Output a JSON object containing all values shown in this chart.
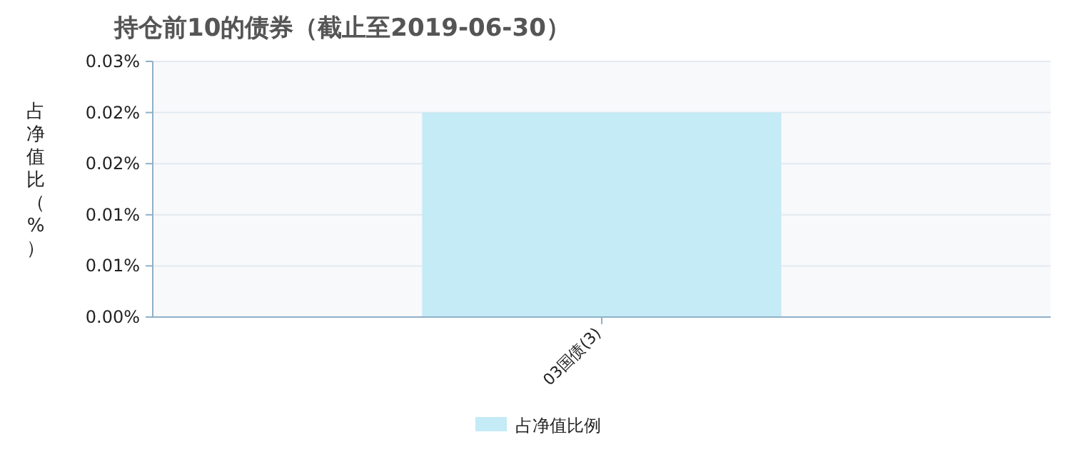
{
  "chart_data": {
    "type": "bar",
    "title": "持仓前10的债券（截止至2019-06-30）",
    "ylabel": "占净值比（%）",
    "categories": [
      "03国债(3)"
    ],
    "series": [
      {
        "name": "占净值比例",
        "color": "#c4ebf6",
        "values": [
          0.024
        ]
      }
    ],
    "ylim": [
      0,
      0.03
    ],
    "yticks": [
      {
        "value": 0,
        "label": "0.00%"
      },
      {
        "value": 0.006,
        "label": "0.01%"
      },
      {
        "value": 0.012,
        "label": "0.01%"
      },
      {
        "value": 0.018,
        "label": "0.02%"
      },
      {
        "value": 0.024,
        "label": "0.02%"
      },
      {
        "value": 0.03,
        "label": "0.03%"
      }
    ],
    "grid": "y",
    "legend": "bottom"
  }
}
